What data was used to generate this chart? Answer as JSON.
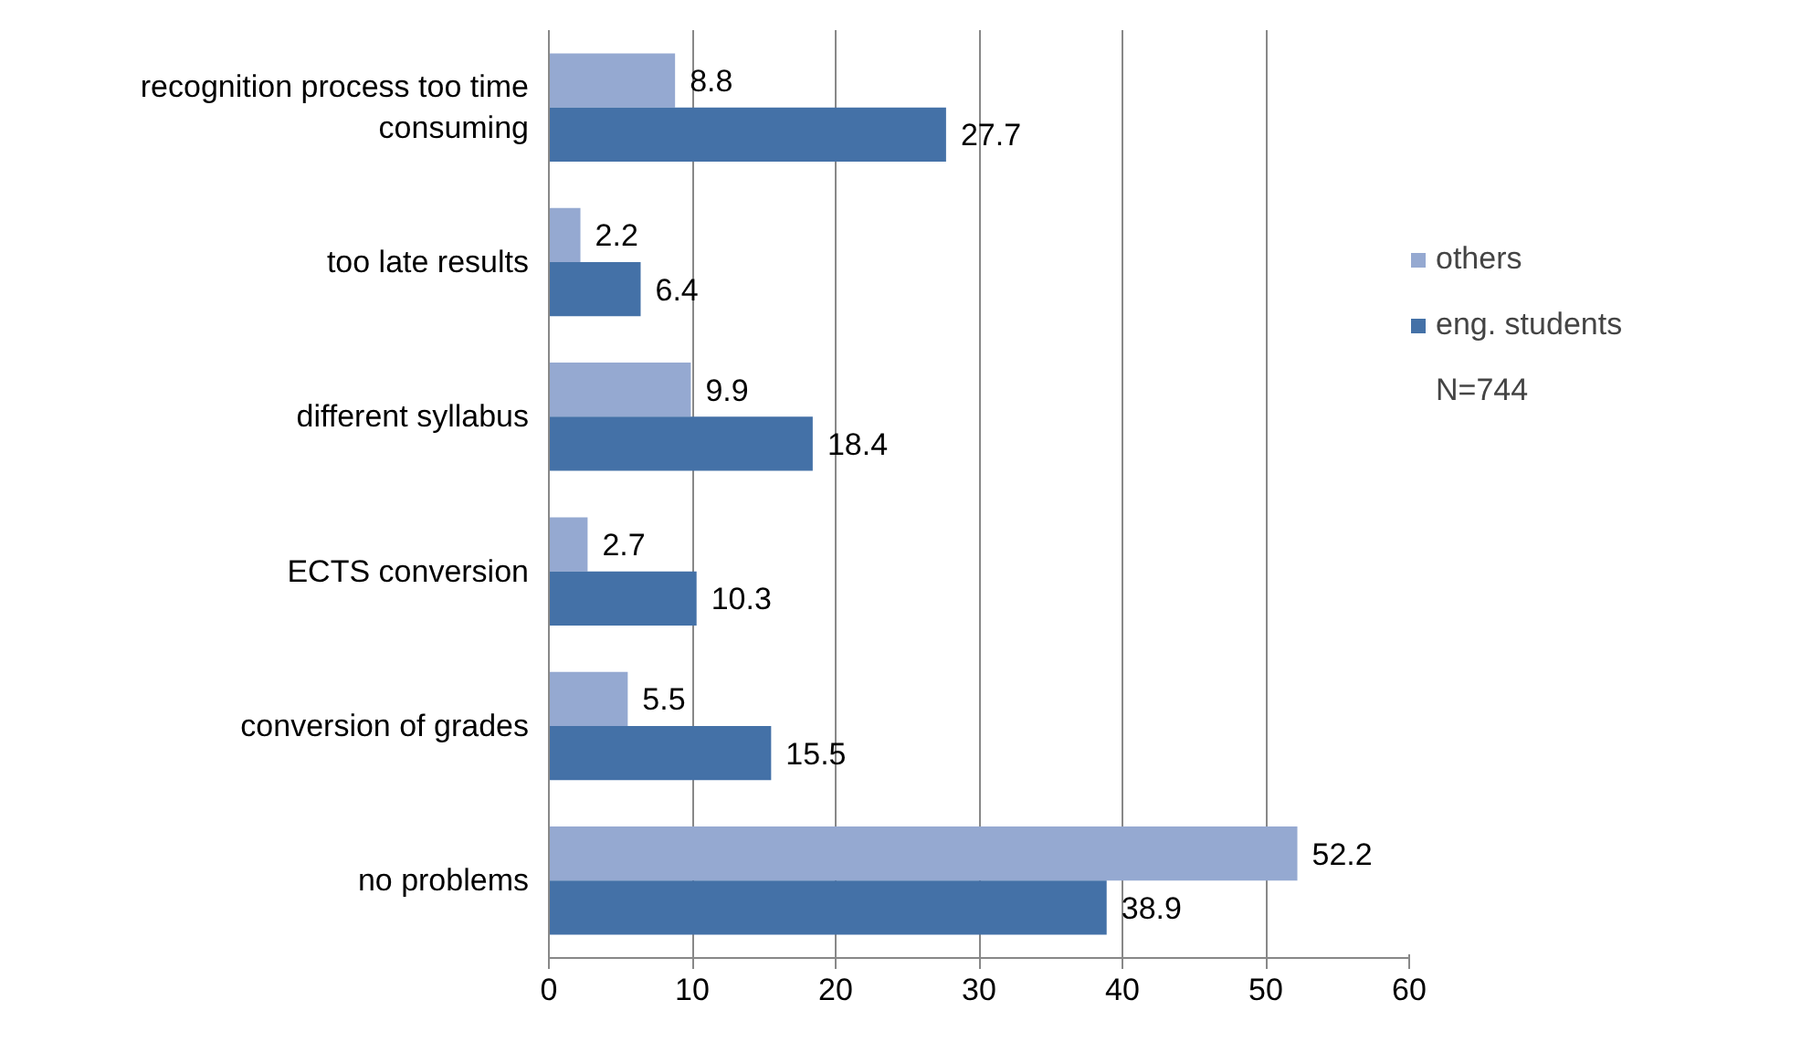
{
  "chart_data": {
    "type": "bar",
    "orientation": "horizontal",
    "categories": [
      "recognition process too time consuming",
      "too late results",
      "different syllabus",
      "ECTS conversion",
      "conversion of grades",
      "no problems"
    ],
    "series": [
      {
        "name": "others",
        "color": "#95a9d1",
        "values": [
          8.8,
          2.2,
          9.9,
          2.7,
          5.5,
          52.2
        ]
      },
      {
        "name": "eng. students",
        "color": "#4471a7",
        "values": [
          27.7,
          6.4,
          18.4,
          10.3,
          15.5,
          38.9
        ]
      }
    ],
    "xlim": [
      0,
      60
    ],
    "xticks": [
      0,
      10,
      20,
      30,
      40,
      50,
      60
    ],
    "grid": "x",
    "legend": "right",
    "data_labels": true,
    "annotations": [
      "N=744"
    ]
  }
}
